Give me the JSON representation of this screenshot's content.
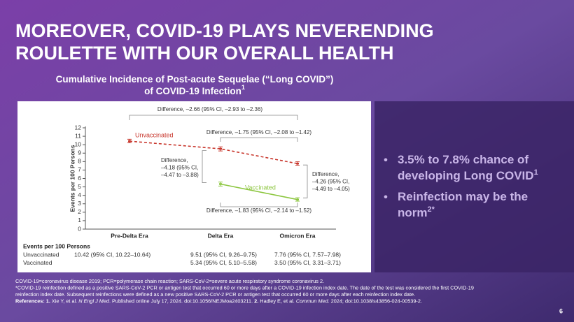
{
  "title": {
    "lines": [
      "MOREOVER, COVID-19 PLAYS NEVERENDING",
      "ROULETTE WITH OUR OVERALL HEALTH"
    ]
  },
  "chart_data": {
    "type": "line",
    "title": {
      "lines": [
        "Cumulative Incidence of Post-acute Sequelae (“Long COVID”)",
        "of COVID-19 Infection"
      ],
      "ref": "1"
    },
    "y_label": "Events per 100 Persons",
    "categories": [
      "Pre-Delta Era",
      "Delta Era",
      "Omicron Era"
    ],
    "series": [
      {
        "name": "Unvaccinated",
        "color": "#c8372d",
        "dashed": true,
        "values": [
          10.42,
          9.51,
          7.76
        ],
        "errors_low": [
          10.22,
          9.26,
          7.57
        ],
        "errors_high": [
          10.64,
          9.75,
          7.98
        ]
      },
      {
        "name": "Vaccinated",
        "color": "#8cc63f",
        "dashed": false,
        "values": [
          null,
          5.34,
          3.5
        ],
        "errors_low": [
          null,
          5.1,
          3.31
        ],
        "errors_high": [
          null,
          5.58,
          3.71
        ]
      }
    ],
    "ylim": [
      0,
      12
    ],
    "yticks": [
      0,
      1,
      2,
      3,
      4,
      5,
      6,
      7,
      8,
      9,
      10,
      11,
      12
    ],
    "annotations": [
      {
        "lines": [
          "Difference, –2.66 (95% CI, –2.93 to –2.36)"
        ]
      },
      {
        "lines": [
          "Difference, –1.75 (95% CI, –2.08 to –1.42)"
        ]
      },
      {
        "lines": [
          "Difference,",
          "–4.18 (95% CI,",
          "–4.47 to –3.88)"
        ]
      },
      {
        "lines": [
          "Difference,",
          "–4.26 (95% CI,",
          "–4.49 to –4.05)"
        ]
      },
      {
        "lines": [
          "Difference, –1.83 (95% CI, –2.14 to –1.52)"
        ]
      }
    ],
    "table": {
      "title": "Events per 100 Persons",
      "rows": [
        [
          "Unvaccinated",
          "10.42 (95% CI, 10.22–10.64)",
          "9.51 (95% CI, 9.26–9.75)",
          "7.76 (95% CI, 7.57–7.98)"
        ],
        [
          "Vaccinated",
          null,
          "5.34 (95% CI, 5.10–5.58)",
          "3.50 (95% CI, 3.31–3.71)"
        ]
      ]
    }
  },
  "bullets": [
    {
      "lines": [
        "3.5% to 7.8% chance of",
        "developing Long COVID"
      ],
      "ref": "1"
    },
    {
      "lines": [
        "Reinfection may be the",
        "norm"
      ],
      "ref": "2*"
    }
  ],
  "footnotes": [
    "COVID-19=coronavirus disease 2019; PCR=polymerase chain reaction; SARS-CoV-2=severe acute respiratory syndrome coronavirus 2.",
    "*COVID-19 reinfection defined as a positive SARS-CoV-2 PCR or antigen test that occurred 60 or more days after a COVID-19 infection index date. The date of the test was considered the first COVID-19",
    "reinfection index date. Subsequent reinfections were defined as a new positive SARS-CoV-2 PCR or antigen test that occurred 60 or more days after each reinfection index date."
  ],
  "references": [
    {
      "text": "References: 1.",
      "style": "bold"
    },
    {
      "text": " Xie Y, et al. "
    },
    {
      "text": "N Engl J Med",
      "style": "italic"
    },
    {
      "text": ". Published online July 17, 2024. doi:10.1056/NEJMoa2403211. "
    },
    {
      "text": "2.",
      "style": "bold"
    },
    {
      "text": " Hadley E, et al. "
    },
    {
      "text": "Commun Med",
      "style": "italic"
    },
    {
      "text": ". 2024; doi:10.1038/s43856-024-00539-2."
    }
  ],
  "page_number": "6"
}
